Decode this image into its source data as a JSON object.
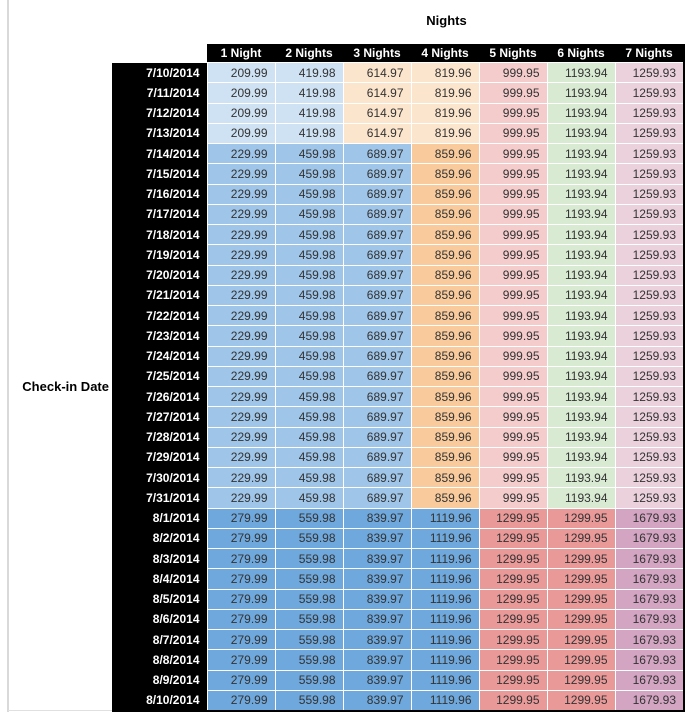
{
  "chart_data": {
    "type": "heatmap",
    "title": "Nights",
    "row_axis_label": "Check-in Date",
    "columns": [
      "1 Night",
      "2 Nights",
      "3 Nights",
      "4 Nights",
      "5 Nights",
      "6 Nights",
      "7 Nights"
    ],
    "header_bg": "#000000",
    "header_text_color": "#ffffff",
    "bands": [
      {
        "values": [
          "209.99",
          "419.98",
          "614.97",
          "819.96",
          "999.95",
          "1193.94",
          "1259.93"
        ],
        "cell_colors": [
          "#cfe2f3",
          "#cfe2f3",
          "#fce5cd",
          "#fce5cd",
          "#f4cccc",
          "#d9ead3",
          "#ead1dc"
        ]
      },
      {
        "values": [
          "229.99",
          "459.98",
          "689.97",
          "859.96",
          "999.95",
          "1193.94",
          "1259.93"
        ],
        "cell_colors": [
          "#9fc5e8",
          "#9fc5e8",
          "#9fc5e8",
          "#f9cb9c",
          "#f4cccc",
          "#d9ead3",
          "#ead1dc"
        ]
      },
      {
        "values": [
          "279.99",
          "559.98",
          "839.97",
          "1119.96",
          "1299.95",
          "1299.95",
          "1679.93"
        ],
        "cell_colors": [
          "#6fa8dc",
          "#6fa8dc",
          "#6fa8dc",
          "#6fa8dc",
          "#ea9999",
          "#ea9999",
          "#d3a5c3"
        ]
      }
    ],
    "rows": [
      {
        "date": "7/10/2014",
        "band": 0
      },
      {
        "date": "7/11/2014",
        "band": 0
      },
      {
        "date": "7/12/2014",
        "band": 0
      },
      {
        "date": "7/13/2014",
        "band": 0
      },
      {
        "date": "7/14/2014",
        "band": 1
      },
      {
        "date": "7/15/2014",
        "band": 1
      },
      {
        "date": "7/16/2014",
        "band": 1
      },
      {
        "date": "7/17/2014",
        "band": 1
      },
      {
        "date": "7/18/2014",
        "band": 1
      },
      {
        "date": "7/19/2014",
        "band": 1
      },
      {
        "date": "7/20/2014",
        "band": 1
      },
      {
        "date": "7/21/2014",
        "band": 1
      },
      {
        "date": "7/22/2014",
        "band": 1
      },
      {
        "date": "7/23/2014",
        "band": 1
      },
      {
        "date": "7/24/2014",
        "band": 1
      },
      {
        "date": "7/25/2014",
        "band": 1
      },
      {
        "date": "7/26/2014",
        "band": 1
      },
      {
        "date": "7/27/2014",
        "band": 1
      },
      {
        "date": "7/28/2014",
        "band": 1
      },
      {
        "date": "7/29/2014",
        "band": 1
      },
      {
        "date": "7/30/2014",
        "band": 1
      },
      {
        "date": "7/31/2014",
        "band": 1
      },
      {
        "date": "8/1/2014",
        "band": 2
      },
      {
        "date": "8/2/2014",
        "band": 2
      },
      {
        "date": "8/3/2014",
        "band": 2
      },
      {
        "date": "8/4/2014",
        "band": 2
      },
      {
        "date": "8/5/2014",
        "band": 2
      },
      {
        "date": "8/6/2014",
        "band": 2
      },
      {
        "date": "8/7/2014",
        "band": 2
      },
      {
        "date": "8/8/2014",
        "band": 2
      },
      {
        "date": "8/9/2014",
        "band": 2
      },
      {
        "date": "8/10/2014",
        "band": 2
      }
    ]
  }
}
